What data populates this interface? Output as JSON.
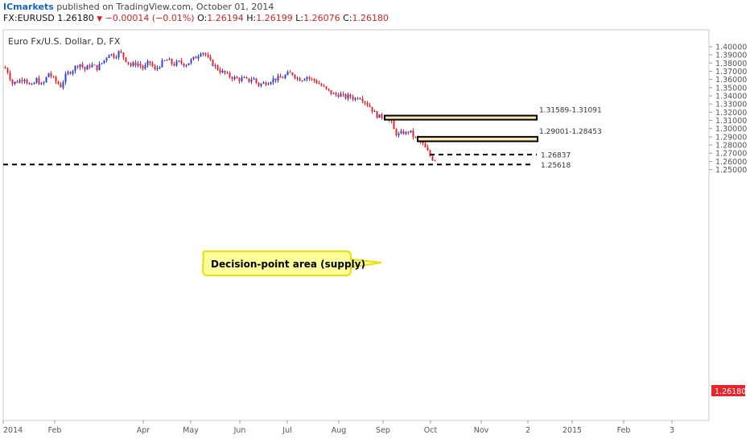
{
  "header": {
    "brand": "ICmarkets",
    "published": "published on TradingView.com, October 01, 2014",
    "symbol": "FX:EURUSD",
    "last": "1.26180",
    "arrow": "▼",
    "change": "−0.00014 (−0.01%)",
    "o_label": "O:",
    "o_value": "1.26194",
    "h_label": "H:",
    "h_value": "1.26199",
    "l_label": "L:",
    "l_value": "1.26076",
    "c_label": "C:",
    "c_value": "1.26180"
  },
  "colors": {
    "up": "#2c3fd9",
    "down": "#e8242c",
    "zone_fill": "#fbe6b4",
    "callout_fill": "#fefe9a",
    "callout_stroke": "#e8e000",
    "price_tag": "#e8242c"
  },
  "chart_data": {
    "type": "candlestick",
    "title": "Euro Fx/U.S. Dollar, D, FX",
    "ylim": [
      1.245,
      1.405
    ],
    "y_ticks": [
      "1.25000",
      "1.26000",
      "1.27000",
      "1.28000",
      "1.29000",
      "1.30000",
      "1.31000",
      "1.32000",
      "1.33000",
      "1.34000",
      "1.35000",
      "1.36000",
      "1.37000",
      "1.38000",
      "1.39000",
      "1.40000"
    ],
    "x_ticks": [
      "2014",
      "Feb",
      "Apr",
      "May",
      "Jun",
      "Jul",
      "Aug",
      "Sep",
      "Oct",
      "Nov",
      "2",
      "2015",
      "Feb",
      "3"
    ],
    "current_price": "1.26180",
    "price_path": [
      [
        0,
        1.378
      ],
      [
        8,
        1.372
      ],
      [
        15,
        1.355
      ],
      [
        22,
        1.358
      ],
      [
        30,
        1.362
      ],
      [
        38,
        1.35
      ],
      [
        45,
        1.36
      ],
      [
        52,
        1.352
      ],
      [
        60,
        1.368
      ],
      [
        68,
        1.358
      ],
      [
        75,
        1.352
      ],
      [
        82,
        1.366
      ],
      [
        90,
        1.372
      ],
      [
        98,
        1.38
      ],
      [
        105,
        1.372
      ],
      [
        112,
        1.378
      ],
      [
        120,
        1.374
      ],
      [
        128,
        1.382
      ],
      [
        135,
        1.392
      ],
      [
        142,
        1.388
      ],
      [
        148,
        1.394
      ],
      [
        155,
        1.385
      ],
      [
        162,
        1.377
      ],
      [
        170,
        1.38
      ],
      [
        178,
        1.373
      ],
      [
        185,
        1.382
      ],
      [
        192,
        1.371
      ],
      [
        200,
        1.38
      ],
      [
        208,
        1.384
      ],
      [
        215,
        1.378
      ],
      [
        222,
        1.381
      ],
      [
        230,
        1.378
      ],
      [
        237,
        1.383
      ],
      [
        244,
        1.388
      ],
      [
        250,
        1.395
      ],
      [
        255,
        1.39
      ],
      [
        260,
        1.382
      ],
      [
        266,
        1.377
      ],
      [
        272,
        1.371
      ],
      [
        278,
        1.368
      ],
      [
        284,
        1.364
      ],
      [
        290,
        1.362
      ],
      [
        296,
        1.36
      ],
      [
        302,
        1.361
      ],
      [
        308,
        1.358
      ],
      [
        314,
        1.362
      ],
      [
        320,
        1.353
      ],
      [
        326,
        1.355
      ],
      [
        332,
        1.357
      ],
      [
        338,
        1.36
      ],
      [
        344,
        1.361
      ],
      [
        350,
        1.362
      ],
      [
        356,
        1.366
      ],
      [
        362,
        1.368
      ],
      [
        368,
        1.362
      ],
      [
        374,
        1.36
      ],
      [
        380,
        1.364
      ],
      [
        386,
        1.36
      ],
      [
        392,
        1.358
      ],
      [
        398,
        1.353
      ],
      [
        404,
        1.348
      ],
      [
        410,
        1.344
      ],
      [
        416,
        1.341
      ],
      [
        422,
        1.342
      ],
      [
        428,
        1.338
      ],
      [
        434,
        1.34
      ],
      [
        440,
        1.336
      ],
      [
        446,
        1.34
      ],
      [
        452,
        1.334
      ],
      [
        456,
        1.33
      ],
      [
        460,
        1.326
      ],
      [
        464,
        1.32
      ],
      [
        468,
        1.316
      ],
      [
        472,
        1.314
      ],
      [
        476,
        1.315
      ],
      [
        480,
        1.313
      ],
      [
        484,
        1.314
      ],
      [
        488,
        1.3
      ],
      [
        492,
        1.294
      ],
      [
        496,
        1.292
      ],
      [
        500,
        1.296
      ],
      [
        504,
        1.294
      ],
      [
        508,
        1.298
      ],
      [
        512,
        1.292
      ],
      [
        516,
        1.288
      ],
      [
        520,
        1.286
      ],
      [
        524,
        1.282
      ],
      [
        528,
        1.276
      ],
      [
        532,
        1.27
      ],
      [
        536,
        1.264
      ],
      [
        540,
        1.262
      ],
      [
        544,
        1.2618
      ]
    ],
    "zones": [
      {
        "label": "1.31589-1.31091",
        "top": 1.31589,
        "bottom": 1.31091
      },
      {
        "label": "1.29001-1.28453",
        "top": 1.29001,
        "bottom": 1.28453
      }
    ],
    "levels": [
      {
        "label": "1.26837",
        "price": 1.26837
      },
      {
        "label": "1.25618",
        "price": 1.25618
      }
    ],
    "annotation": "Decision-point area (supply)"
  }
}
